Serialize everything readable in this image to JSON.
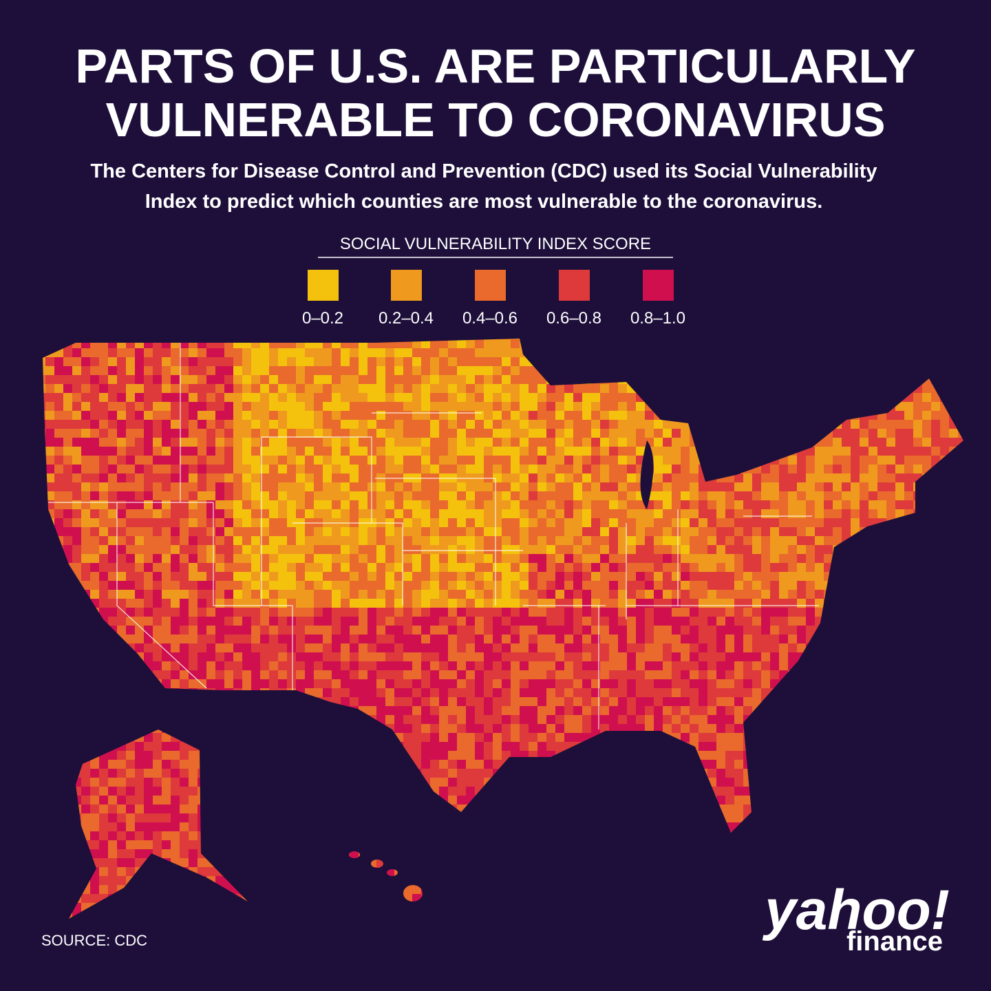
{
  "header": {
    "title": [
      "PARTS OF U.S. ARE PARTICULARLY",
      "VULNERABLE TO CORONAVIRUS"
    ],
    "subtitle": [
      "The Centers for Disease Control and Prevention (CDC) used its Social Vulnerability",
      "Index to predict which counties are most vulnerable to the coronavirus."
    ]
  },
  "legend": {
    "title": "SOCIAL VULNERABILITY INDEX SCORE",
    "items": [
      {
        "label": "0–0.2",
        "color": "#f4c20d"
      },
      {
        "label": "0.2–0.4",
        "color": "#ef9a1e"
      },
      {
        "label": "0.4–0.6",
        "color": "#e96a2c"
      },
      {
        "label": "0.6–0.8",
        "color": "#de3a3c"
      },
      {
        "label": "0.8–1.0",
        "color": "#d0104e"
      }
    ]
  },
  "footer": {
    "source": "SOURCE:  CDC",
    "logo": "yahoo!",
    "logo_sub": "finance"
  }
}
